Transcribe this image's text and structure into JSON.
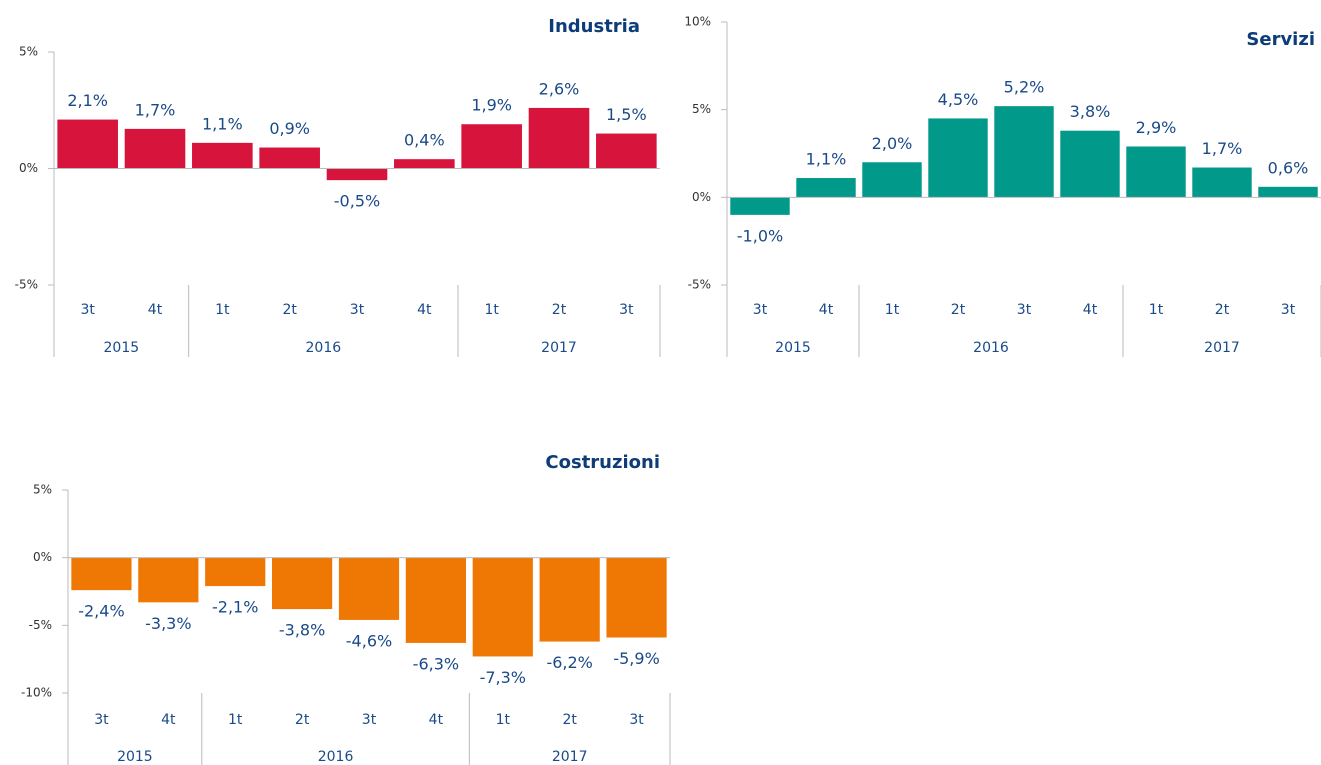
{
  "chart_data": [
    {
      "type": "bar",
      "title": "Industria",
      "color": "#d7143c",
      "groups": [
        {
          "label": "2015",
          "categories": [
            "3t",
            "4t"
          ]
        },
        {
          "label": "2016",
          "categories": [
            "1t",
            "2t",
            "3t",
            "4t"
          ]
        },
        {
          "label": "2017",
          "categories": [
            "1t",
            "2t",
            "3t"
          ]
        }
      ],
      "values": [
        2.1,
        1.7,
        1.1,
        0.9,
        -0.5,
        0.4,
        1.9,
        2.6,
        1.5
      ],
      "value_labels": [
        "2,1%",
        "1,7%",
        "1,1%",
        "0,9%",
        "-0,5%",
        "0,4%",
        "1,9%",
        "2,6%",
        "1,5%"
      ],
      "ylim": [
        -5,
        5
      ],
      "yticks": [
        {
          "value": -5,
          "label": "-5%"
        },
        {
          "value": 0,
          "label": "0%"
        },
        {
          "value": 5,
          "label": "5%"
        }
      ]
    },
    {
      "type": "bar",
      "title": "Servizi",
      "color": "#00998a",
      "groups": [
        {
          "label": "2015",
          "categories": [
            "3t",
            "4t"
          ]
        },
        {
          "label": "2016",
          "categories": [
            "1t",
            "2t",
            "3t",
            "4t"
          ]
        },
        {
          "label": "2017",
          "categories": [
            "1t",
            "2t",
            "3t"
          ]
        }
      ],
      "values": [
        -1.0,
        1.1,
        2.0,
        4.5,
        5.2,
        3.8,
        2.9,
        1.7,
        0.6
      ],
      "value_labels": [
        "-1,0%",
        "1,1%",
        "2,0%",
        "4,5%",
        "5,2%",
        "3,8%",
        "2,9%",
        "1,7%",
        "0,6%"
      ],
      "ylim": [
        -5,
        10
      ],
      "yticks": [
        {
          "value": -5,
          "label": "-5%"
        },
        {
          "value": 0,
          "label": "0%"
        },
        {
          "value": 5,
          "label": "5%"
        },
        {
          "value": 10,
          "label": "10%"
        }
      ]
    },
    {
      "type": "bar",
      "title": "Costruzioni",
      "color": "#ef7805",
      "groups": [
        {
          "label": "2015",
          "categories": [
            "3t",
            "4t"
          ]
        },
        {
          "label": "2016",
          "categories": [
            "1t",
            "2t",
            "3t",
            "4t"
          ]
        },
        {
          "label": "2017",
          "categories": [
            "1t",
            "2t",
            "3t"
          ]
        }
      ],
      "values": [
        -2.4,
        -3.3,
        -2.1,
        -3.8,
        -4.6,
        -6.3,
        -7.3,
        -6.2,
        -5.9
      ],
      "value_labels": [
        "-2,4%",
        "-3,3%",
        "-2,1%",
        "-3,8%",
        "-4,6%",
        "-6,3%",
        "-7,3%",
        "-6,2%",
        "-5,9%"
      ],
      "ylim": [
        -10,
        5
      ],
      "yticks": [
        {
          "value": -10,
          "label": "-10%"
        },
        {
          "value": -5,
          "label": "-5%"
        },
        {
          "value": 0,
          "label": "0%"
        },
        {
          "value": 5,
          "label": "5%"
        }
      ]
    }
  ]
}
